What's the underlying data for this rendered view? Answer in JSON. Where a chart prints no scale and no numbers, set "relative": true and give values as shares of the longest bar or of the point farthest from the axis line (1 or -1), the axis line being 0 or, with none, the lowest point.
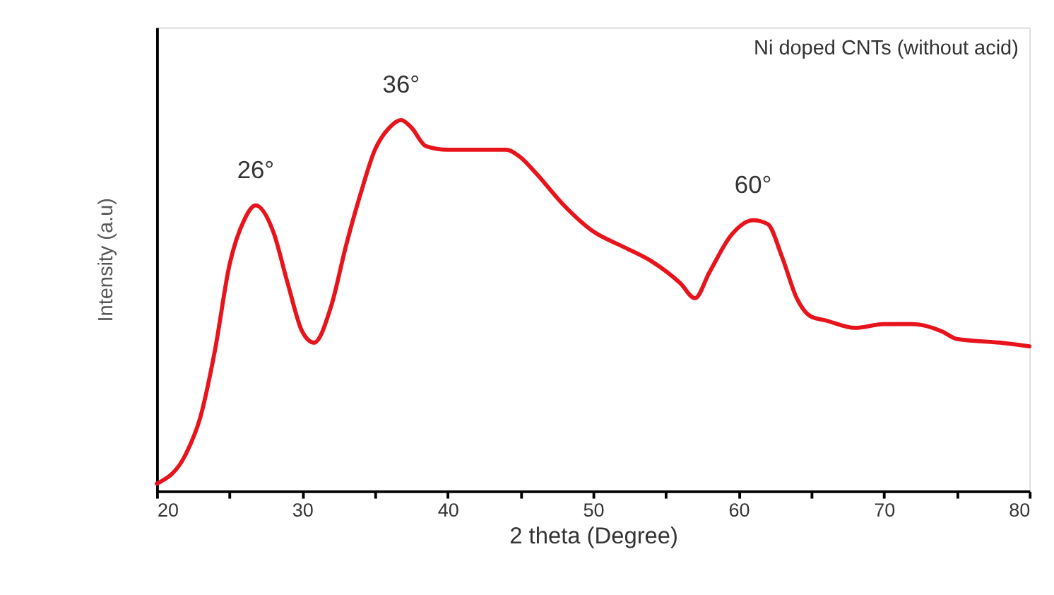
{
  "chart_data": {
    "type": "line",
    "relative": true,
    "xlabel": "2 theta (Degree)",
    "ylabel": "Intensity (a.u)",
    "xlim": [
      20,
      80
    ],
    "xticks": [
      20,
      {
        "value": 25,
        "label": null
      },
      30,
      {
        "value": 35,
        "label": null
      },
      40,
      {
        "value": 45,
        "label": null
      },
      50,
      {
        "value": 55,
        "label": null
      },
      60,
      {
        "value": 65,
        "label": null
      },
      70,
      {
        "value": 75,
        "label": null
      },
      80
    ],
    "grid": false,
    "marker": "none",
    "line_style": "solid",
    "annotations": [
      "Ni doped CNTs (without acid)",
      {
        "text": "26°",
        "x": 26.8,
        "y": 0.77
      },
      {
        "text": "36°",
        "x": 36.8,
        "y": 1.0
      },
      {
        "text": "60°",
        "x": 61,
        "y": 0.73
      }
    ],
    "series": [
      {
        "color": "#e8141c",
        "x": [
          20,
          22,
          23,
          24,
          25,
          26,
          26.8,
          28,
          29,
          30,
          30.8,
          32,
          33,
          34,
          35,
          36,
          36.8,
          37.5,
          38.5,
          40,
          42,
          44,
          45,
          46,
          48,
          50,
          52,
          54,
          56,
          57,
          58,
          59.5,
          61,
          62,
          63,
          64,
          65,
          66,
          68,
          70,
          72,
          74,
          75,
          78,
          80
        ],
        "values": [
          0.02,
          0.1,
          0.2,
          0.38,
          0.61,
          0.73,
          0.77,
          0.7,
          0.56,
          0.43,
          0.4,
          0.5,
          0.66,
          0.8,
          0.92,
          0.98,
          1.0,
          0.98,
          0.93,
          0.92,
          0.92,
          0.92,
          0.9,
          0.86,
          0.77,
          0.7,
          0.66,
          0.62,
          0.56,
          0.52,
          0.59,
          0.69,
          0.73,
          0.72,
          0.63,
          0.52,
          0.47,
          0.46,
          0.44,
          0.45,
          0.45,
          0.43,
          0.41,
          0.4,
          0.39
        ]
      }
    ]
  }
}
